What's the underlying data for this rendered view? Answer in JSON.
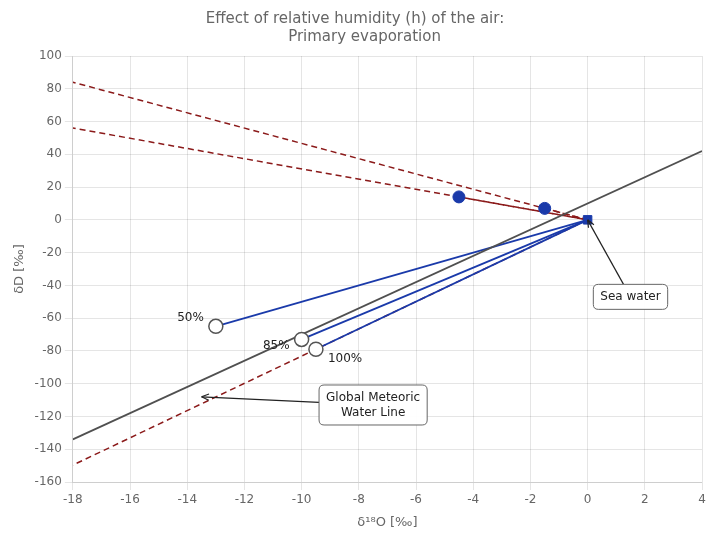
{
  "chart_data": {
    "type": "scatter",
    "title": "Effect of relative humidity (h) of the air:\n    Primary evaporation",
    "xlabel": "δ¹⁸O [‰]",
    "ylabel": "δD [‰]",
    "xlim": [
      -18,
      4
    ],
    "ylim": [
      -160,
      100
    ],
    "xticks": [
      -18,
      -16,
      -14,
      -12,
      -10,
      -8,
      -6,
      -4,
      -2,
      0,
      2,
      4
    ],
    "yticks": [
      -160,
      -140,
      -120,
      -100,
      -80,
      -60,
      -40,
      -20,
      0,
      20,
      40,
      60,
      80,
      100
    ],
    "grid": true,
    "series": [
      {
        "x": [
          -18,
          4
        ],
        "values": [
          -134,
          42
        ],
        "color": "#505050",
        "line_style": "solid",
        "marker": "none"
      },
      {
        "x": [
          -13,
          0
        ],
        "values": [
          -65,
          0
        ],
        "color": "#1a3aaa",
        "line_style": "solid",
        "marker": "none"
      },
      {
        "x": [
          -10,
          0
        ],
        "values": [
          -73,
          0
        ],
        "color": "#1a3aaa",
        "line_style": "solid",
        "marker": "none"
      },
      {
        "x": [
          -9.5,
          0
        ],
        "values": [
          -79,
          0
        ],
        "color": "#1a3aaa",
        "line_style": "solid",
        "marker": "none"
      },
      {
        "x": [
          -4.5,
          0
        ],
        "values": [
          14,
          0
        ],
        "color": "#8b1a1a",
        "line_style": "dashed",
        "marker": "none"
      },
      {
        "x": [
          -1.5,
          0
        ],
        "values": [
          7,
          0
        ],
        "color": "#8b1a1a",
        "line_style": "dashed",
        "marker": "none"
      },
      {
        "x": [
          0,
          -18
        ],
        "values": [
          0,
          56
        ],
        "color": "#8b1a1a",
        "line_style": "dashed",
        "marker": "none"
      },
      {
        "x": [
          0,
          -18
        ],
        "values": [
          0,
          84
        ],
        "color": "#8b1a1a",
        "line_style": "dashed",
        "marker": "none"
      },
      {
        "x": [
          0,
          -18
        ],
        "values": [
          0,
          -149.6842105263158
        ],
        "color": "#8b1a1a",
        "line_style": "dashed",
        "marker": "none"
      },
      {
        "x": [
          0
        ],
        "values": [
          0
        ],
        "color": "#1a3aaa",
        "line_style": "none",
        "marker": "square"
      },
      {
        "x": [
          -4.5,
          -1.5
        ],
        "values": [
          14,
          7
        ],
        "color": "#1a3aaa",
        "line_style": "none",
        "marker": "circle"
      },
      {
        "x": [
          -13,
          -10,
          -9.5
        ],
        "values": [
          -65,
          -73,
          -79
        ],
        "color": "#555555",
        "line_style": "none",
        "marker": "open_circle"
      }
    ],
    "annotations": [
      {
        "text": "50%",
        "x": -13,
        "y": -65
      },
      {
        "text": "85%",
        "x": -10,
        "y": -73
      },
      {
        "text": "100%",
        "x": -9.5,
        "y": -79
      },
      {
        "text": "Sea water",
        "x": 0,
        "y": 0,
        "label_x": 1.5,
        "label_y": -47
      },
      {
        "text": "Global Meteoric\nWater Line",
        "x": -13.5,
        "y": -108,
        "label_x": -7.5,
        "label_y": -113
      }
    ]
  }
}
